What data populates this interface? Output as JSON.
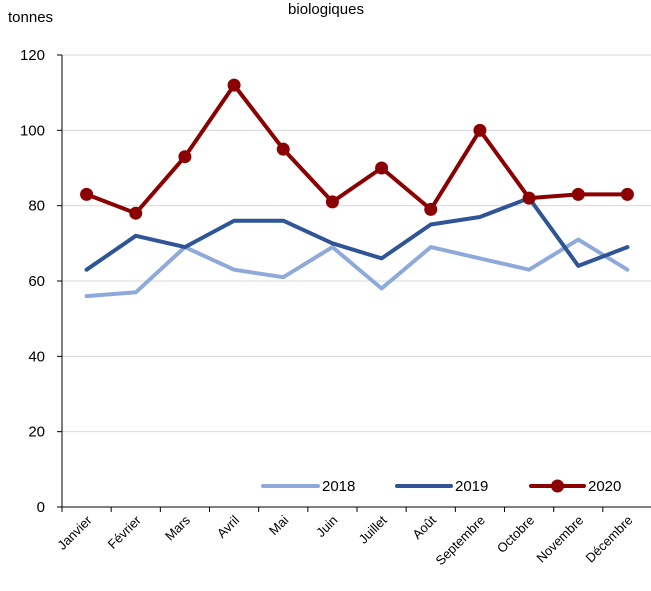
{
  "chart_data": {
    "type": "line",
    "title": "biologiques",
    "ylabel": "tonnes",
    "xlabel": "",
    "categories": [
      "Janvier",
      "Février",
      "Mars",
      "Avril",
      "Mai",
      "Juin",
      "Juillet",
      "Août",
      "Septembre",
      "Octobre",
      "Novembre",
      "Décembre"
    ],
    "ylim": [
      0,
      120
    ],
    "yticks": [
      0,
      20,
      40,
      60,
      80,
      100,
      120
    ],
    "grid": true,
    "legend_position": "bottom-right",
    "series": [
      {
        "name": "2018",
        "color": "#8eaadb",
        "markers": false,
        "values": [
          56,
          57,
          69,
          63,
          61,
          69,
          58,
          69,
          66,
          63,
          71,
          63
        ]
      },
      {
        "name": "2019",
        "color": "#2f5597",
        "markers": false,
        "values": [
          63,
          72,
          69,
          76,
          76,
          70,
          66,
          75,
          77,
          82,
          64,
          69
        ]
      },
      {
        "name": "2020",
        "color": "#8b0000",
        "markers": true,
        "values": [
          83,
          78,
          93,
          112,
          95,
          81,
          90,
          79,
          100,
          82,
          83,
          83
        ]
      }
    ]
  }
}
